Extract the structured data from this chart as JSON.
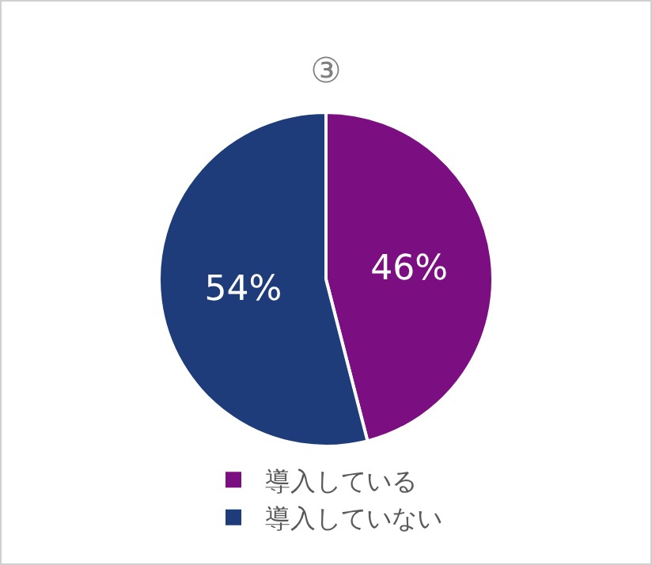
{
  "chart_data": {
    "type": "pie",
    "title": "③",
    "categories": [
      "導入している",
      "導入していない"
    ],
    "values": [
      46,
      54
    ],
    "colors": [
      "#7b0f82",
      "#1f3c7a"
    ],
    "value_labels": [
      "46%",
      "54%"
    ],
    "legend": "bottom"
  }
}
